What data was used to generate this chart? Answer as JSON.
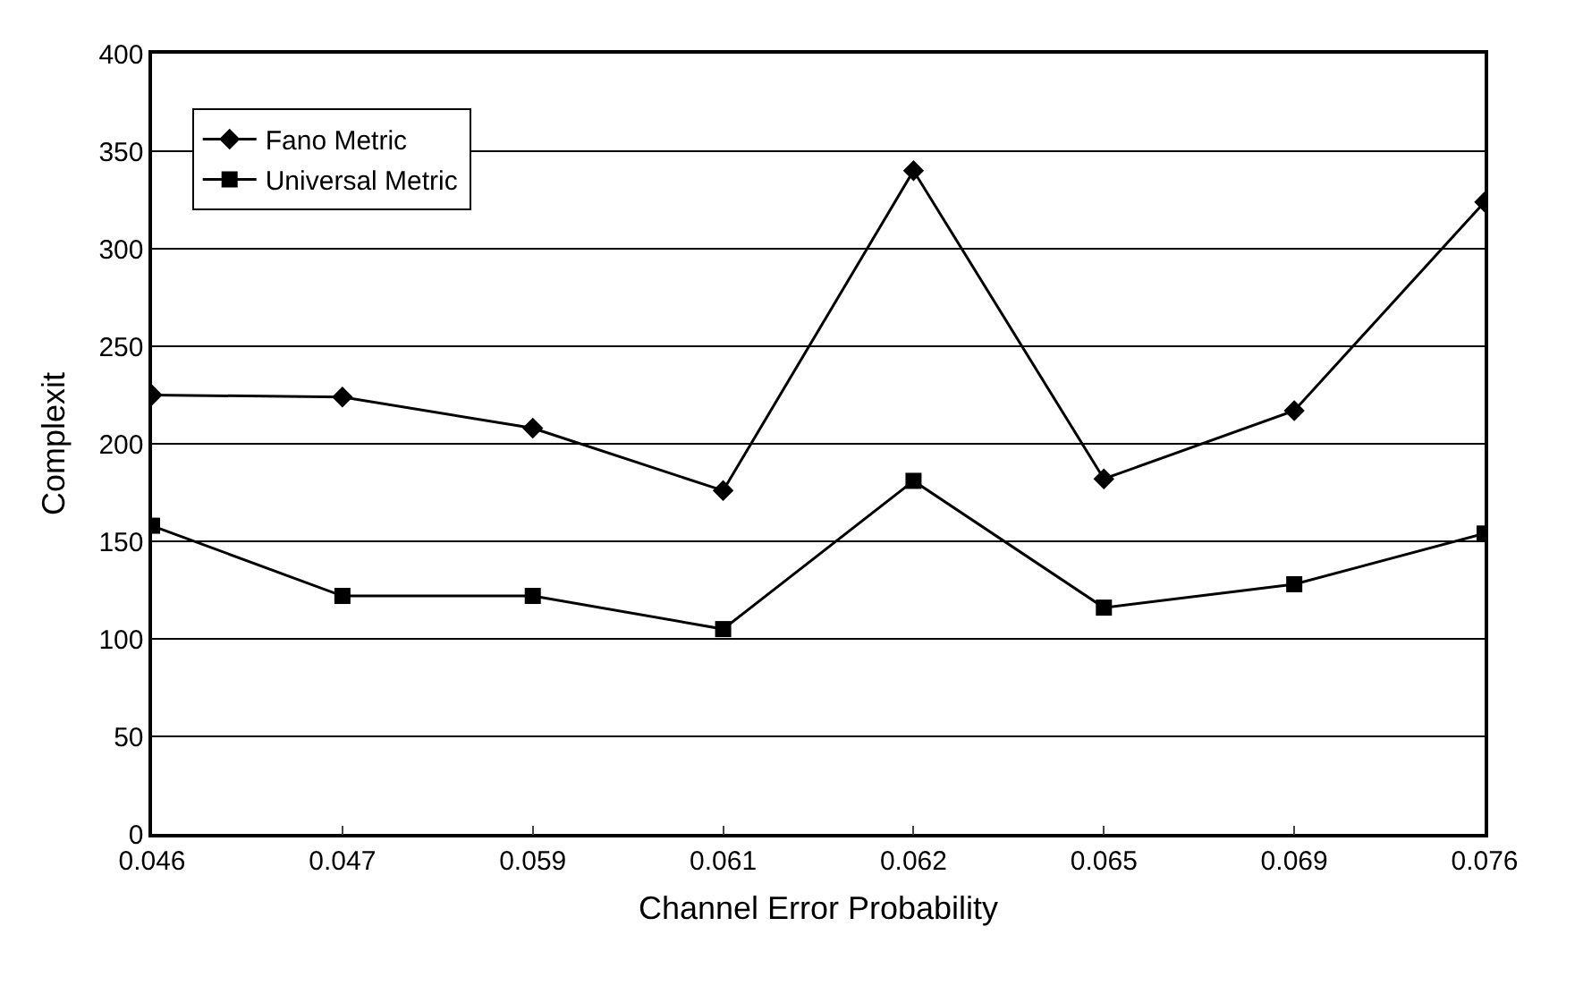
{
  "chart_data": {
    "type": "line",
    "xlabel": "Channel Error Probability",
    "ylabel": "Complexit",
    "categories": [
      "0.046",
      "0.047",
      "0.059",
      "0.061",
      "0.062",
      "0.065",
      "0.069",
      "0.076"
    ],
    "series": [
      {
        "name": "Fano Metric",
        "color": "#000000",
        "marker": "diamond",
        "values": [
          225,
          224,
          208,
          176,
          340,
          182,
          217,
          324
        ]
      },
      {
        "name": "Universal Metric",
        "color": "#000000",
        "marker": "square",
        "values": [
          158,
          122,
          122,
          105,
          181,
          116,
          128,
          154
        ]
      }
    ],
    "ylim": [
      0,
      400
    ],
    "yticks": [
      0,
      50,
      100,
      150,
      200,
      250,
      300,
      350,
      400
    ],
    "grid": "y",
    "legend": "top left",
    "line_style": "solid"
  }
}
